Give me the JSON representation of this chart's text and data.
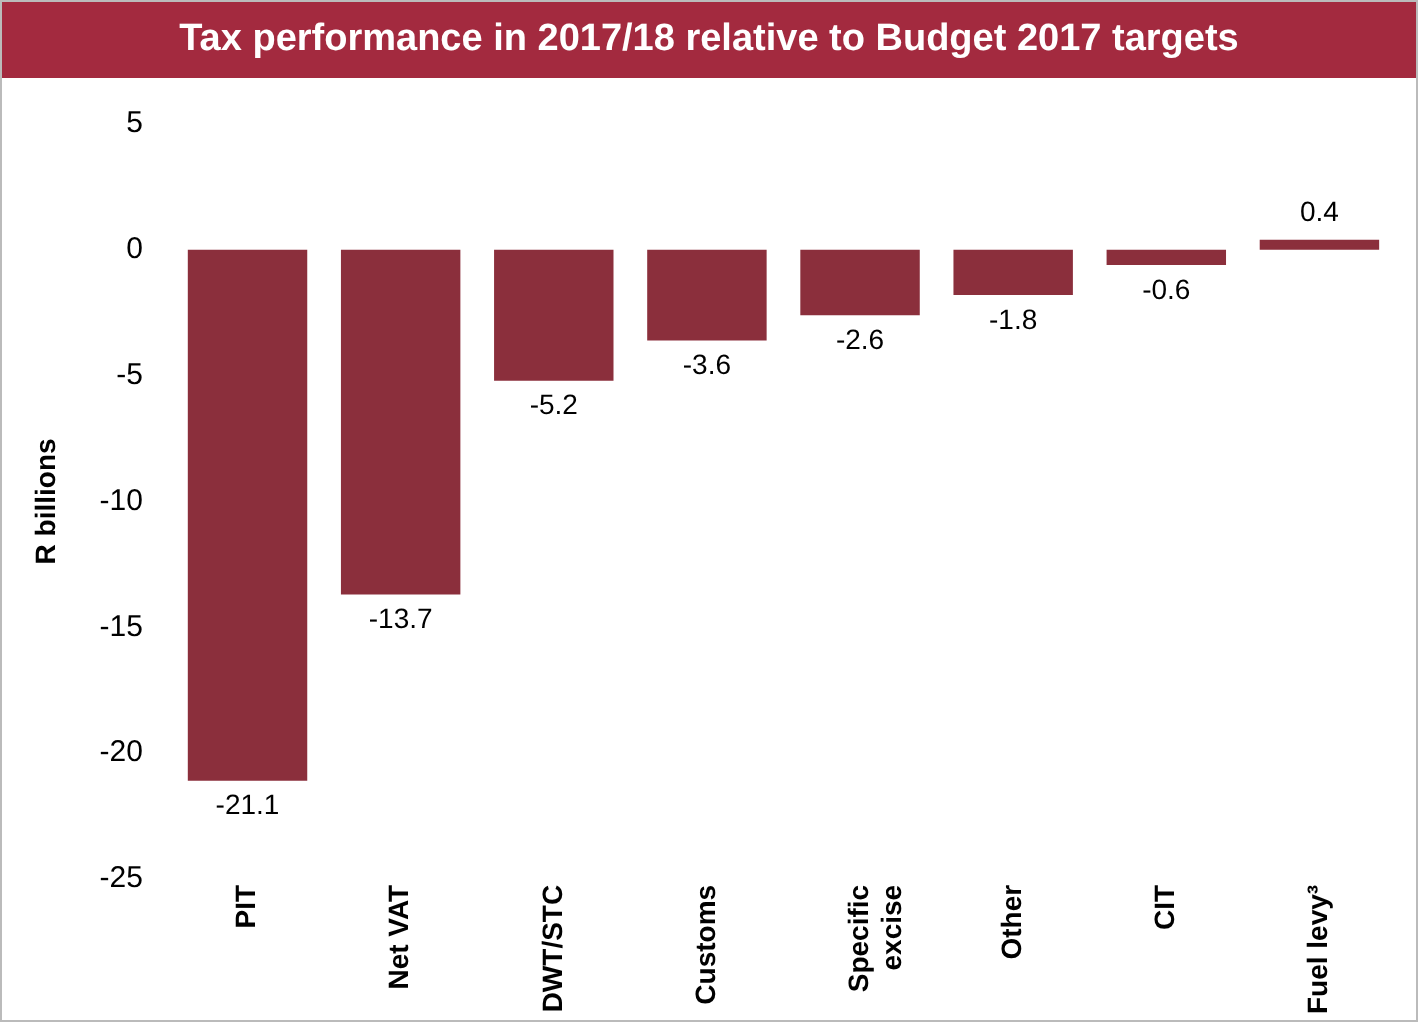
{
  "chart_data": {
    "type": "bar",
    "title": "Tax performance in 2017/18 relative to Budget 2017 targets",
    "ylabel": "R billions",
    "categories": [
      "PIT",
      "Net VAT",
      "DWT/STC",
      "Customs",
      "Specific excise",
      "Other",
      "CIT",
      "Fuel levy³"
    ],
    "values": [
      -21.1,
      -13.7,
      -5.2,
      -3.6,
      -2.6,
      -1.8,
      -0.6,
      0.4
    ],
    "color": "#8b2f3c",
    "ylim": [
      -25,
      5
    ],
    "yticks": [
      -25,
      -20,
      -15,
      -10,
      -5,
      0,
      5
    ],
    "grid": false,
    "data_labels": true
  }
}
